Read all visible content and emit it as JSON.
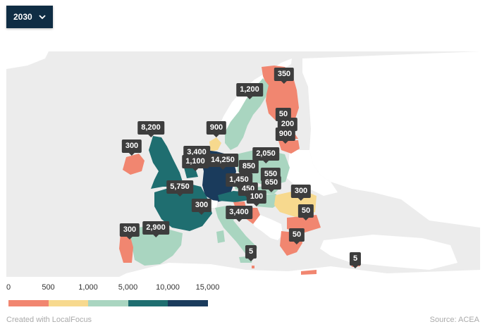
{
  "year_select": {
    "value": "2030",
    "chevron_icon": "chevron-down-icon"
  },
  "colors": {
    "bin_0": "#f18670",
    "bin_1": "#f7d98e",
    "bin_2": "#a9d5c0",
    "bin_3": "#1f6e70",
    "bin_4": "#1a3b5c",
    "land_other": "#ffffff",
    "sea": "#ececec"
  },
  "legend": {
    "ticks": [
      "0",
      "500",
      "1,000",
      "5,000",
      "10,000",
      "15,000"
    ],
    "thresholds": [
      0,
      500,
      1000,
      5000,
      10000,
      15000
    ]
  },
  "labels": [
    {
      "country": "Finland",
      "text": "350",
      "value": 350
    },
    {
      "country": "Sweden",
      "text": "1,200",
      "value": 1200
    },
    {
      "country": "Estonia",
      "text": "50",
      "value": 50
    },
    {
      "country": "Latvia",
      "text": "200",
      "value": 200
    },
    {
      "country": "Lithuania",
      "text": "900",
      "value": 900
    },
    {
      "country": "Denmark",
      "text": "900",
      "value": 900
    },
    {
      "country": "United Kingdom",
      "text": "8,200",
      "value": 8200
    },
    {
      "country": "Ireland",
      "text": "300",
      "value": 300
    },
    {
      "country": "Netherlands",
      "text": "3,400",
      "value": 3400
    },
    {
      "country": "Belgium",
      "text": "1,100",
      "value": 1100
    },
    {
      "country": "Germany",
      "text": "14,250",
      "value": 14250
    },
    {
      "country": "Poland",
      "text": "2,050",
      "value": 2050
    },
    {
      "country": "Czechia",
      "text": "850",
      "value": 850
    },
    {
      "country": "Slovakia",
      "text": "550",
      "value": 550
    },
    {
      "country": "Hungary",
      "text": "650",
      "value": 650
    },
    {
      "country": "Austria",
      "text": "1,450",
      "value": 1450
    },
    {
      "country": "Slovenia",
      "text": "450",
      "value": 450
    },
    {
      "country": "Croatia",
      "text": "100",
      "value": 100
    },
    {
      "country": "France",
      "text": "5,750",
      "value": 5750
    },
    {
      "country": "Switzerland",
      "text": "300",
      "value": 300
    },
    {
      "country": "Romania",
      "text": "300",
      "value": 300
    },
    {
      "country": "Bulgaria",
      "text": "50",
      "value": 50
    },
    {
      "country": "Italy",
      "text": "3,400",
      "value": 3400
    },
    {
      "country": "Portugal",
      "text": "300",
      "value": 300
    },
    {
      "country": "Spain",
      "text": "2,900",
      "value": 2900
    },
    {
      "country": "Greece",
      "text": "50",
      "value": 50
    },
    {
      "country": "Malta",
      "text": "5",
      "value": 5
    },
    {
      "country": "Cyprus",
      "text": "5",
      "value": 5
    }
  ],
  "footer": {
    "credit": "Created with LocalFocus",
    "source": "Source: ACEA"
  }
}
